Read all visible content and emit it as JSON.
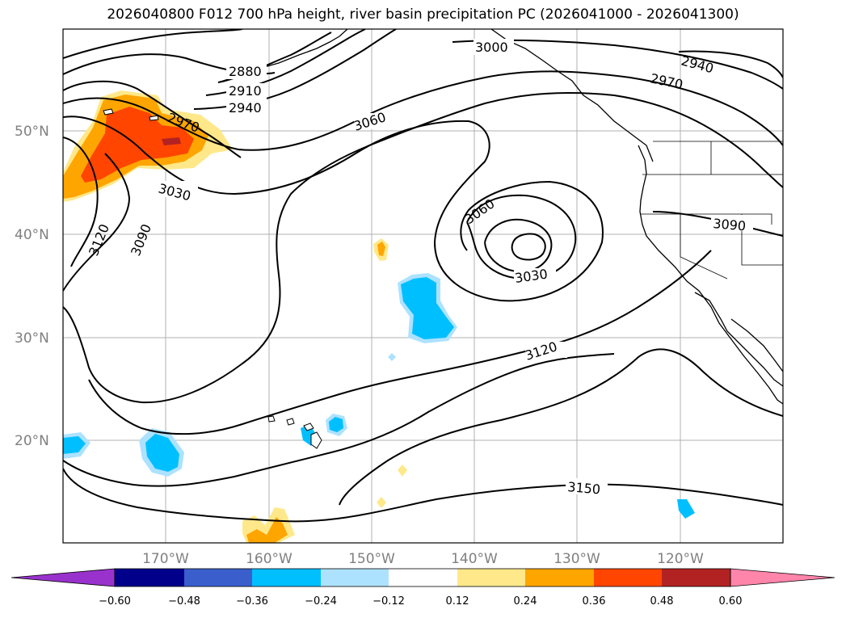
{
  "title": "2026040800 F012 700 hPa height, river basin precipitation PC (2026041000 - 2026041300)",
  "axes": {
    "lat_labels": [
      "50°N",
      "40°N",
      "30°N",
      "20°N"
    ],
    "lon_labels": [
      "170°W",
      "160°W",
      "150°W",
      "140°W",
      "130°W",
      "120°W"
    ]
  },
  "contour_labels": [
    "2880",
    "2910",
    "2940",
    "2970",
    "3000",
    "2940",
    "2970",
    "3060",
    "3030",
    "3120",
    "3090",
    "3060",
    "3030",
    "3090",
    "3120",
    "3150"
  ],
  "colorbar": {
    "ticks": [
      "−0.60",
      "−0.48",
      "−0.36",
      "−0.24",
      "−0.12",
      "0.12",
      "0.24",
      "0.36",
      "0.48",
      "0.60"
    ],
    "colors": [
      "#9932cc",
      "#00008b",
      "#3a5fcd",
      "#00bfff",
      "#ade2ff",
      "#ffffff",
      "#ffe88a",
      "#ffa500",
      "#ff4500",
      "#b22222",
      "#ff85aa"
    ]
  }
}
